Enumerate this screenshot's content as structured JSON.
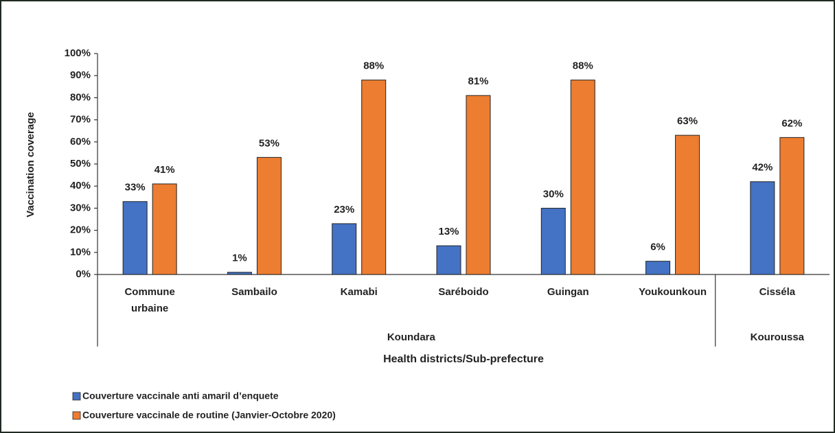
{
  "chart_data": {
    "type": "bar",
    "y_label": "Vaccination coverage",
    "x_label": "Health districts/Sub-prefecture",
    "categories": [
      "Commune urbaine",
      "Sambailo",
      "Kamabi",
      "Saréboido",
      "Guingan",
      "Youkounkoun",
      "Cisséla"
    ],
    "groups": [
      {
        "label": "Koundara",
        "span": 6
      },
      {
        "label": "Kouroussa",
        "span": 1
      }
    ],
    "series": [
      {
        "name": "Couverture vaccinale anti amaril d’enquete",
        "color": "#4472c4",
        "values": [
          33,
          1,
          23,
          13,
          30,
          6,
          42
        ],
        "value_labels": [
          "33%",
          "1%",
          "23%",
          "13%",
          "30%",
          "6%",
          "42%"
        ]
      },
      {
        "name": "Couverture vaccinale de routine  (Janvier-Octobre 2020)",
        "color": "#ed7d31",
        "values": [
          41,
          53,
          88,
          81,
          88,
          63,
          62
        ],
        "value_labels": [
          "41%",
          "53%",
          "88%",
          "81%",
          "88%",
          "63%",
          "62%"
        ]
      }
    ],
    "ylim": [
      0,
      100
    ],
    "yticks": [
      {
        "value": 0,
        "label": "0%"
      },
      {
        "value": 10,
        "label": "10%"
      },
      {
        "value": 20,
        "label": "20%"
      },
      {
        "value": 30,
        "label": "30%"
      },
      {
        "value": 40,
        "label": "40%"
      },
      {
        "value": 50,
        "label": "50%"
      },
      {
        "value": 60,
        "label": "60%"
      },
      {
        "value": 70,
        "label": "70%"
      },
      {
        "value": 80,
        "label": "80%"
      },
      {
        "value": 90,
        "label": "90%"
      },
      {
        "value": 100,
        "label": "100%"
      }
    ],
    "grid": false
  }
}
